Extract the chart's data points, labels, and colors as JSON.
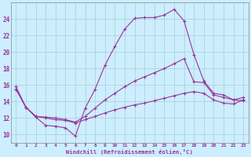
{
  "xlabel": "Windchill (Refroidissement éolien,°C)",
  "background_color": "#cceeff",
  "grid_color": "#aaddcc",
  "line_color": "#993399",
  "xlim": [
    -0.5,
    23.5
  ],
  "ylim": [
    9,
    26
  ],
  "yticks": [
    10,
    12,
    14,
    16,
    18,
    20,
    22,
    24
  ],
  "xticks": [
    0,
    1,
    2,
    3,
    4,
    5,
    6,
    7,
    8,
    9,
    10,
    11,
    12,
    13,
    14,
    15,
    16,
    17,
    18,
    19,
    20,
    21,
    22,
    23
  ],
  "series": [
    {
      "x": [
        0,
        1,
        2,
        3,
        4,
        5,
        6,
        7,
        8,
        9,
        10,
        11,
        12,
        13,
        14,
        15,
        16,
        17,
        18,
        19,
        20,
        21,
        22,
        23
      ],
      "y": [
        15.8,
        13.3,
        12.1,
        11.1,
        11.0,
        10.8,
        9.8,
        13.2,
        15.5,
        18.4,
        20.7,
        22.8,
        24.1,
        24.2,
        24.2,
        24.5,
        25.2,
        23.8,
        19.7,
        16.5,
        15.0,
        14.8,
        14.2,
        14.1
      ]
    },
    {
      "x": [
        0,
        1,
        2,
        3,
        4,
        5,
        6,
        7,
        8,
        9,
        10,
        11,
        12,
        13,
        14,
        15,
        16,
        17,
        18,
        19,
        20,
        21,
        22,
        23
      ],
      "y": [
        15.5,
        13.3,
        12.2,
        12.1,
        12.0,
        11.8,
        11.5,
        12.2,
        13.2,
        14.2,
        15.0,
        15.8,
        16.5,
        17.0,
        17.5,
        18.0,
        18.6,
        19.2,
        16.4,
        16.3,
        14.8,
        14.5,
        14.2,
        14.5
      ]
    },
    {
      "x": [
        0,
        1,
        2,
        3,
        4,
        5,
        6,
        7,
        8,
        9,
        10,
        11,
        12,
        13,
        14,
        15,
        16,
        17,
        18,
        19,
        20,
        21,
        22,
        23
      ],
      "y": [
        15.5,
        13.3,
        12.2,
        12.0,
        11.8,
        11.7,
        11.4,
        11.8,
        12.2,
        12.6,
        13.0,
        13.3,
        13.6,
        13.8,
        14.1,
        14.4,
        14.7,
        15.0,
        15.2,
        15.0,
        14.2,
        13.8,
        13.7,
        14.2
      ]
    }
  ]
}
